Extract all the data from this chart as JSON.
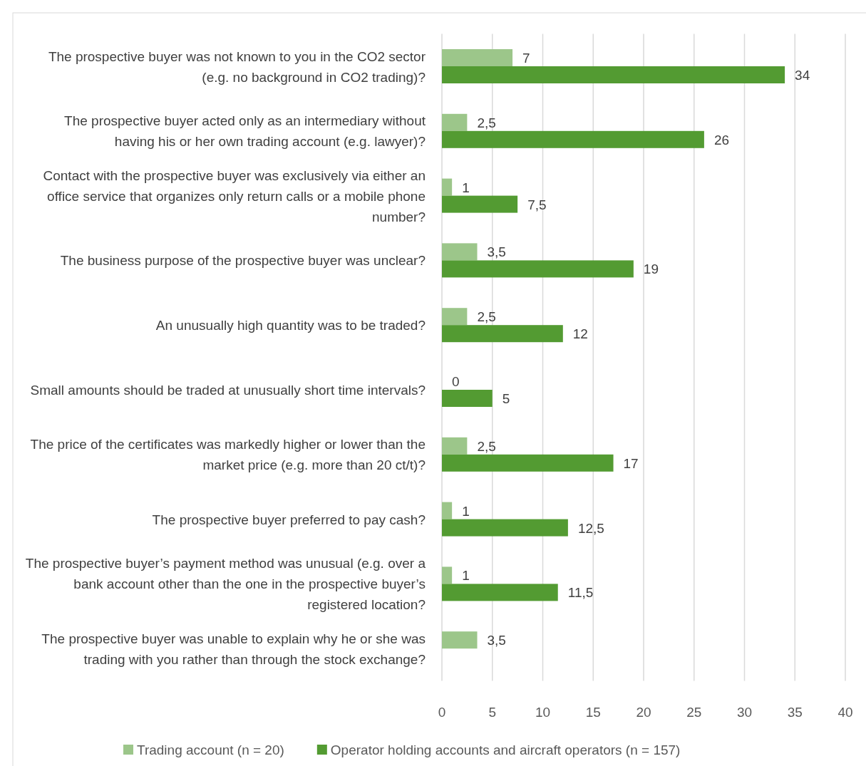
{
  "chart_data": {
    "type": "bar",
    "orientation": "horizontal",
    "categories": [
      "The prospective buyer was not known to you in the CO2 sector (e.g. no background in CO2 trading)?",
      "The prospective buyer acted only as an intermediary without having his or her own trading account (e.g. lawyer)?",
      "Contact with the prospective buyer was exclusively via either an office service that organizes only return calls or a mobile phone number?",
      "The business purpose of the prospective buyer was unclear?",
      "An unusually high quantity was to be traded?",
      "Small amounts should be traded at unusually short time intervals?",
      "The price of the certificates was markedly higher or lower than the market price (e.g. more than 20 ct/t)?",
      "The prospective buyer preferred to pay cash?",
      "The prospective buyer’s payment method was unusual (e.g. over a bank account other than the one in the prospective buyer’s registered location?",
      "The prospective buyer was unable to explain why he or she was trading with you rather than through the stock exchange?"
    ],
    "series": [
      {
        "name": "Trading account (n = 20)",
        "color": "#9cc68a",
        "values": [
          7,
          2.5,
          1,
          3.5,
          2.5,
          0,
          2.5,
          1,
          1,
          3.5
        ],
        "value_labels": [
          "7",
          "2,5",
          "1",
          "3,5",
          "2,5",
          "0",
          "2,5",
          "1",
          "1",
          "3,5"
        ]
      },
      {
        "name": "Operator holding accounts and aircraft operators (n = 157)",
        "color": "#539b32",
        "values": [
          34,
          26,
          7.5,
          19,
          12,
          5,
          17,
          12.5,
          11.5,
          null
        ],
        "value_labels": [
          "34",
          "26",
          "7,5",
          "19",
          "12",
          "5",
          "17",
          "12,5",
          "11,5",
          null
        ]
      }
    ],
    "xlim": [
      0,
      40
    ],
    "xticks": [
      0,
      5,
      10,
      15,
      20,
      25,
      30,
      35,
      40
    ],
    "grid": "x",
    "legend": "bottom"
  }
}
